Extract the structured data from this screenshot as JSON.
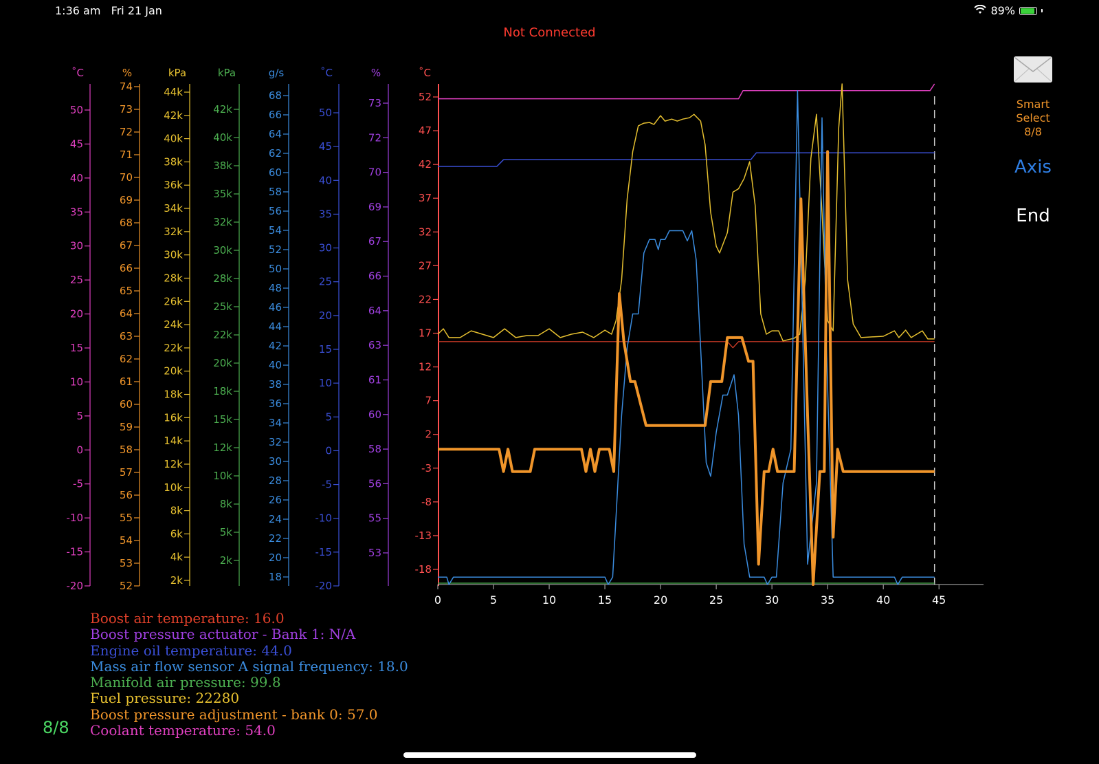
{
  "status_bar": {
    "time": "1:36 am",
    "date": "Fri 21 Jan",
    "battery": "89%",
    "battery_level": 0.89
  },
  "connection": "Not Connected",
  "sidebar": {
    "smart_select": [
      "Smart",
      "Select",
      "8/8"
    ],
    "axis_label": "Axis",
    "end_label": "End"
  },
  "page_indicator": "8/8",
  "colors": {
    "coolant": "#e040c0",
    "boost_adj": "#f0952a",
    "fuel": "#e6c030",
    "manifold": "#4caf50",
    "maf": "#3b8de0",
    "oil": "#3a4fd6",
    "actuator": "#a040e0",
    "boost_temp": "#e0402a",
    "main_axis": "#ff5050"
  },
  "axes": [
    {
      "unit": "˚C",
      "color": "#e040c0",
      "ticks": [
        "50",
        "45",
        "40",
        "35",
        "30",
        "25",
        "20",
        "15",
        "10",
        "5",
        "0",
        "-5",
        "-10",
        "-15",
        "-20"
      ]
    },
    {
      "unit": "%",
      "color": "#f0952a",
      "ticks": [
        "74",
        "73",
        "72",
        "71",
        "70",
        "69",
        "68",
        "67",
        "66",
        "65",
        "64",
        "63",
        "62",
        "61",
        "60",
        "59",
        "58",
        "57",
        "56",
        "55",
        "54",
        "53",
        "52"
      ]
    },
    {
      "unit": "kPa",
      "color": "#e6c030",
      "ticks": [
        "44k",
        "42k",
        "40k",
        "38k",
        "36k",
        "34k",
        "32k",
        "30k",
        "28k",
        "26k",
        "24k",
        "22k",
        "20k",
        "18k",
        "16k",
        "14k",
        "12k",
        "10k",
        "8k",
        "6k",
        "4k",
        "2k"
      ]
    },
    {
      "unit": "kPa",
      "color": "#4caf50",
      "ticks": [
        "42k",
        "40k",
        "38k",
        "35k",
        "32k",
        "30k",
        "28k",
        "25k",
        "22k",
        "20k",
        "18k",
        "15k",
        "12k",
        "10k",
        "8k",
        "5k",
        "2k"
      ]
    },
    {
      "unit": "g/s",
      "color": "#3b8de0",
      "ticks": [
        "68",
        "66",
        "64",
        "62",
        "60",
        "58",
        "56",
        "54",
        "52",
        "50",
        "48",
        "46",
        "44",
        "42",
        "40",
        "38",
        "36",
        "34",
        "32",
        "30",
        "28",
        "26",
        "24",
        "22",
        "20",
        "18"
      ]
    },
    {
      "unit": "˚C",
      "color": "#3a4fd6",
      "ticks": [
        "50",
        "45",
        "40",
        "35",
        "30",
        "25",
        "20",
        "15",
        "10",
        "5",
        "0",
        "-5",
        "-10",
        "-15",
        "-20"
      ]
    },
    {
      "unit": "%",
      "color": "#a040e0",
      "ticks": [
        "73",
        "72",
        "70",
        "69",
        "67",
        "66",
        "64",
        "63",
        "61",
        "60",
        "58",
        "56",
        "55",
        "53"
      ]
    },
    {
      "unit": "˚C",
      "color": "#ff5050",
      "ticks": [
        "52",
        "47",
        "42",
        "37",
        "32",
        "27",
        "22",
        "17",
        "12",
        "7",
        "2",
        "-3",
        "-8",
        "-13",
        "-18"
      ]
    }
  ],
  "chart_data": {
    "type": "line",
    "x_ticks": [
      "0",
      "5",
      "10",
      "15",
      "20",
      "25",
      "30",
      "35",
      "40",
      "45"
    ],
    "xlim": [
      0,
      49
    ],
    "ylim": [
      -20,
      54
    ],
    "cursor_x": 44.6,
    "series": [
      {
        "name": "Coolant temperature",
        "color": "#e040c0",
        "width": 1.5,
        "points": [
          [
            0,
            51.8
          ],
          [
            27,
            51.8
          ],
          [
            27.4,
            53
          ],
          [
            44.2,
            53
          ],
          [
            44.6,
            54
          ]
        ]
      },
      {
        "name": "Engine oil temperature",
        "color": "#3a4fd6",
        "width": 1.5,
        "points": [
          [
            0,
            41.8
          ],
          [
            5.3,
            41.8
          ],
          [
            5.9,
            42.8
          ],
          [
            28.1,
            42.8
          ],
          [
            28.6,
            43.8
          ],
          [
            44.6,
            43.8
          ]
        ]
      },
      {
        "name": "Boost air temperature",
        "color": "#e0402a",
        "width": 1.2,
        "points": [
          [
            0,
            15.9
          ],
          [
            26,
            15.9
          ],
          [
            26.5,
            15
          ],
          [
            27,
            15.9
          ],
          [
            44.6,
            15.9
          ]
        ]
      },
      {
        "name": "Manifold air pressure",
        "color": "#4caf50",
        "width": 1.2,
        "points": [
          [
            0,
            -19.8
          ],
          [
            44.6,
            -19.8
          ]
        ]
      },
      {
        "name": "Fuel pressure",
        "color": "#e6c030",
        "width": 1.5,
        "points": [
          [
            0,
            17
          ],
          [
            0.5,
            17.8
          ],
          [
            1,
            16.5
          ],
          [
            2,
            16.5
          ],
          [
            3,
            17.5
          ],
          [
            4,
            17
          ],
          [
            5,
            16.5
          ],
          [
            6,
            17.8
          ],
          [
            7,
            16.5
          ],
          [
            8,
            16.8
          ],
          [
            9,
            16.8
          ],
          [
            10,
            17.8
          ],
          [
            11,
            16.5
          ],
          [
            12,
            17
          ],
          [
            13,
            17.3
          ],
          [
            14,
            16.5
          ],
          [
            15,
            17.6
          ],
          [
            15.6,
            17
          ],
          [
            16,
            19
          ],
          [
            16.5,
            25
          ],
          [
            17,
            37
          ],
          [
            17.5,
            44
          ],
          [
            18,
            47.8
          ],
          [
            18.5,
            48.2
          ],
          [
            19,
            48.3
          ],
          [
            19.4,
            48
          ],
          [
            20,
            49.3
          ],
          [
            20.4,
            48.5
          ],
          [
            21,
            48.8
          ],
          [
            21.5,
            48.5
          ],
          [
            22,
            48.8
          ],
          [
            22.6,
            49
          ],
          [
            23,
            49.5
          ],
          [
            23.6,
            48.5
          ],
          [
            24,
            45
          ],
          [
            24.5,
            35
          ],
          [
            25,
            30
          ],
          [
            25.3,
            29
          ],
          [
            26,
            32
          ],
          [
            26.5,
            38
          ],
          [
            27,
            38.5
          ],
          [
            27.5,
            40
          ],
          [
            28,
            42.5
          ],
          [
            28.5,
            36
          ],
          [
            29,
            20
          ],
          [
            29.5,
            17
          ],
          [
            30,
            17.5
          ],
          [
            30.6,
            17.5
          ],
          [
            31,
            16
          ],
          [
            32,
            16.4
          ],
          [
            32.5,
            17
          ],
          [
            33,
            25
          ],
          [
            33.5,
            43
          ],
          [
            34,
            49.5
          ],
          [
            34.5,
            35
          ],
          [
            35,
            19
          ],
          [
            35.5,
            17.5
          ],
          [
            36,
            47.5
          ],
          [
            36.3,
            54
          ],
          [
            36.8,
            25
          ],
          [
            37.3,
            18.5
          ],
          [
            38,
            16.5
          ],
          [
            39,
            16.6
          ],
          [
            40,
            16.7
          ],
          [
            41,
            17.5
          ],
          [
            41.4,
            16.5
          ],
          [
            42,
            17.6
          ],
          [
            42.5,
            16.5
          ],
          [
            43,
            17
          ],
          [
            43.5,
            17.5
          ],
          [
            44,
            16.3
          ],
          [
            44.6,
            16.3
          ]
        ]
      },
      {
        "name": "Mass air flow sensor A signal frequency",
        "color": "#3b8de0",
        "width": 1.5,
        "points": [
          [
            0,
            -18.9
          ],
          [
            0.8,
            -18.9
          ],
          [
            1,
            -20
          ],
          [
            1.4,
            -18.9
          ],
          [
            15,
            -18.9
          ],
          [
            15.3,
            -20
          ],
          [
            15.7,
            -18.9
          ],
          [
            16,
            -10
          ],
          [
            16.5,
            5
          ],
          [
            17,
            15
          ],
          [
            17.5,
            20
          ],
          [
            18,
            20
          ],
          [
            18.5,
            29
          ],
          [
            19,
            31
          ],
          [
            19.5,
            31
          ],
          [
            19.8,
            29.5
          ],
          [
            20,
            31
          ],
          [
            20.4,
            31
          ],
          [
            20.8,
            32.3
          ],
          [
            21.2,
            32.3
          ],
          [
            22,
            32.3
          ],
          [
            22.4,
            30.8
          ],
          [
            22.8,
            32.3
          ],
          [
            23.2,
            28
          ],
          [
            23.6,
            15
          ],
          [
            24.1,
            -2
          ],
          [
            24.5,
            -4
          ],
          [
            25,
            2.5
          ],
          [
            25.6,
            8
          ],
          [
            26,
            8
          ],
          [
            26.6,
            11
          ],
          [
            27,
            5
          ],
          [
            27.5,
            -14
          ],
          [
            28,
            -18.9
          ],
          [
            29.3,
            -18.9
          ],
          [
            29.6,
            -20
          ],
          [
            30,
            -18.9
          ],
          [
            30.4,
            -18.9
          ],
          [
            31,
            -5
          ],
          [
            31.7,
            0
          ],
          [
            32.3,
            53
          ],
          [
            32.8,
            15
          ],
          [
            33.2,
            -17
          ],
          [
            34,
            -5
          ],
          [
            34.5,
            49
          ],
          [
            34.9,
            15
          ],
          [
            35.5,
            -18.9
          ],
          [
            41,
            -18.9
          ],
          [
            41.3,
            -20
          ],
          [
            41.7,
            -18.9
          ],
          [
            44.6,
            -18.9
          ]
        ]
      },
      {
        "name": "Boost pressure adjustment - bank 0",
        "color": "#f0952a",
        "width": 4,
        "points": [
          [
            0,
            0
          ],
          [
            5.5,
            0
          ],
          [
            5.9,
            -3.3
          ],
          [
            6.3,
            0
          ],
          [
            6.7,
            -3.3
          ],
          [
            8.3,
            -3.3
          ],
          [
            8.7,
            0
          ],
          [
            12.9,
            0
          ],
          [
            13.3,
            -3.3
          ],
          [
            13.7,
            0
          ],
          [
            14.1,
            -3.3
          ],
          [
            14.5,
            0
          ],
          [
            15.4,
            0
          ],
          [
            15.8,
            -3.3
          ],
          [
            16.3,
            23
          ],
          [
            16.7,
            16
          ],
          [
            17.3,
            10
          ],
          [
            17.7,
            10
          ],
          [
            18.7,
            3.5
          ],
          [
            24,
            3.5
          ],
          [
            24.5,
            10
          ],
          [
            25.5,
            10
          ],
          [
            26,
            16.5
          ],
          [
            27.3,
            16.5
          ],
          [
            27.9,
            13
          ],
          [
            28.3,
            13
          ],
          [
            28.8,
            -17
          ],
          [
            29.3,
            -3.3
          ],
          [
            29.7,
            -3.3
          ],
          [
            30.1,
            0
          ],
          [
            30.5,
            -3.3
          ],
          [
            32,
            -3.3
          ],
          [
            32.6,
            37
          ],
          [
            33.2,
            5
          ],
          [
            33.7,
            -20
          ],
          [
            34.3,
            -3.3
          ],
          [
            34.7,
            -3.3
          ],
          [
            35,
            44
          ],
          [
            35.5,
            -13
          ],
          [
            35.9,
            0
          ],
          [
            36.4,
            -3.3
          ],
          [
            44.6,
            -3.3
          ]
        ]
      }
    ]
  },
  "legend": [
    {
      "label": "Boost air temperature: 16.0",
      "color": "#e0402a"
    },
    {
      "label": "Boost pressure actuator  -  Bank 1: N/A",
      "color": "#a040e0"
    },
    {
      "label": "Engine oil temperature: 44.0",
      "color": "#3a4fd6"
    },
    {
      "label": "Mass air flow sensor A signal frequency: 18.0",
      "color": "#3b8de0"
    },
    {
      "label": "Manifold air pressure: 99.8",
      "color": "#4caf50"
    },
    {
      "label": "Fuel pressure: 22280",
      "color": "#e6c030"
    },
    {
      "label": "Boost pressure adjustment - bank 0: 57.0",
      "color": "#f0952a"
    },
    {
      "label": "Coolant temperature: 54.0",
      "color": "#e040c0"
    }
  ]
}
